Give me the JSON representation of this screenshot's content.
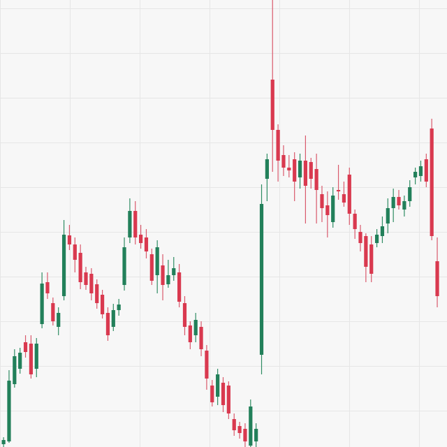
{
  "chart_data": {
    "type": "candlestick",
    "title": "",
    "xlabel": "",
    "ylabel": "",
    "axes_visible": false,
    "grid": true,
    "ylim": [
      0,
      640
    ],
    "colors": {
      "background": "#f7f7f7",
      "grid": "#e6e6e6",
      "up": "#22805a",
      "down": "#d9394f",
      "wick_up": "#2f8c63",
      "wick_down": "#d9596c"
    },
    "candles": [
      {
        "i": 1,
        "open": 4,
        "close": 10,
        "high": 14,
        "low": 0
      },
      {
        "i": 2,
        "open": 8,
        "close": 95,
        "high": 110,
        "low": 6
      },
      {
        "i": 3,
        "open": 90,
        "close": 130,
        "high": 140,
        "low": 85
      },
      {
        "i": 4,
        "open": 112,
        "close": 135,
        "high": 142,
        "low": 105
      },
      {
        "i": 5,
        "open": 150,
        "close": 136,
        "high": 160,
        "low": 128
      },
      {
        "i": 6,
        "open": 148,
        "close": 104,
        "high": 160,
        "low": 98
      },
      {
        "i": 7,
        "open": 112,
        "close": 148,
        "high": 156,
        "low": 100
      },
      {
        "i": 8,
        "open": 176,
        "close": 234,
        "high": 250,
        "low": 170
      },
      {
        "i": 9,
        "open": 236,
        "close": 220,
        "high": 250,
        "low": 212
      },
      {
        "i": 10,
        "open": 206,
        "close": 180,
        "high": 214,
        "low": 174
      },
      {
        "i": 11,
        "open": 172,
        "close": 192,
        "high": 200,
        "low": 160
      },
      {
        "i": 12,
        "open": 216,
        "close": 304,
        "high": 325,
        "low": 210
      },
      {
        "i": 13,
        "open": 303,
        "close": 290,
        "high": 318,
        "low": 282
      },
      {
        "i": 14,
        "open": 290,
        "close": 268,
        "high": 300,
        "low": 250
      },
      {
        "i": 15,
        "open": 278,
        "close": 236,
        "high": 290,
        "low": 226
      },
      {
        "i": 16,
        "open": 250,
        "close": 232,
        "high": 258,
        "low": 225
      },
      {
        "i": 17,
        "open": 248,
        "close": 220,
        "high": 256,
        "low": 210
      },
      {
        "i": 18,
        "open": 233,
        "close": 206,
        "high": 240,
        "low": 198
      },
      {
        "i": 19,
        "open": 218,
        "close": 190,
        "high": 225,
        "low": 184
      },
      {
        "i": 20,
        "open": 192,
        "close": 160,
        "high": 200,
        "low": 152
      },
      {
        "i": 21,
        "open": 172,
        "close": 196,
        "high": 205,
        "low": 166
      },
      {
        "i": 22,
        "open": 196,
        "close": 204,
        "high": 212,
        "low": 188
      },
      {
        "i": 23,
        "open": 232,
        "close": 286,
        "high": 300,
        "low": 224
      },
      {
        "i": 24,
        "open": 300,
        "close": 338,
        "high": 356,
        "low": 292
      },
      {
        "i": 25,
        "open": 338,
        "close": 300,
        "high": 352,
        "low": 290
      },
      {
        "i": 26,
        "open": 304,
        "close": 292,
        "high": 318,
        "low": 284
      },
      {
        "i": 27,
        "open": 300,
        "close": 280,
        "high": 312,
        "low": 270
      },
      {
        "i": 28,
        "open": 276,
        "close": 238,
        "high": 284,
        "low": 232
      },
      {
        "i": 29,
        "open": 246,
        "close": 286,
        "high": 296,
        "low": 220
      },
      {
        "i": 30,
        "open": 260,
        "close": 232,
        "high": 276,
        "low": 210
      },
      {
        "i": 31,
        "open": 233,
        "close": 246,
        "high": 268,
        "low": 228
      },
      {
        "i": 32,
        "open": 246,
        "close": 256,
        "high": 272,
        "low": 238
      },
      {
        "i": 33,
        "open": 250,
        "close": 208,
        "high": 262,
        "low": 200
      },
      {
        "i": 34,
        "open": 206,
        "close": 172,
        "high": 216,
        "low": 160
      },
      {
        "i": 35,
        "open": 174,
        "close": 150,
        "high": 180,
        "low": 140
      },
      {
        "i": 36,
        "open": 160,
        "close": 182,
        "high": 192,
        "low": 150
      },
      {
        "i": 37,
        "open": 172,
        "close": 140,
        "high": 180,
        "low": 130
      },
      {
        "i": 38,
        "open": 138,
        "close": 98,
        "high": 146,
        "low": 82
      },
      {
        "i": 39,
        "open": 88,
        "close": 64,
        "high": 96,
        "low": 58
      },
      {
        "i": 40,
        "open": 72,
        "close": 104,
        "high": 112,
        "low": 60
      },
      {
        "i": 41,
        "open": 92,
        "close": 60,
        "high": 100,
        "low": 50
      },
      {
        "i": 42,
        "open": 88,
        "close": 48,
        "high": 94,
        "low": 40
      },
      {
        "i": 43,
        "open": 40,
        "close": 24,
        "high": 48,
        "low": 16
      },
      {
        "i": 44,
        "open": 30,
        "close": 20,
        "high": 36,
        "low": 12
      },
      {
        "i": 45,
        "open": 26,
        "close": 8,
        "high": 34,
        "low": 0
      },
      {
        "i": 46,
        "open": 2,
        "close": 58,
        "high": 68,
        "low": 0
      },
      {
        "i": 47,
        "open": 8,
        "close": 26,
        "high": 34,
        "low": 0
      },
      {
        "i": 48,
        "open": 132,
        "close": 348,
        "high": 376,
        "low": 104
      },
      {
        "i": 49,
        "open": 384,
        "close": 412,
        "high": 420,
        "low": 352
      },
      {
        "i": 50,
        "open": 526,
        "close": 454,
        "high": 640,
        "low": 394
      },
      {
        "i": 51,
        "open": 454,
        "close": 410,
        "high": 462,
        "low": 380
      },
      {
        "i": 52,
        "open": 418,
        "close": 400,
        "high": 432,
        "low": 388
      },
      {
        "i": 53,
        "open": 400,
        "close": 396,
        "high": 418,
        "low": 386
      },
      {
        "i": 54,
        "open": 412,
        "close": 380,
        "high": 422,
        "low": 352
      },
      {
        "i": 55,
        "open": 386,
        "close": 410,
        "high": 420,
        "low": 370
      },
      {
        "i": 56,
        "open": 410,
        "close": 374,
        "high": 446,
        "low": 320
      },
      {
        "i": 57,
        "open": 408,
        "close": 384,
        "high": 414,
        "low": 370
      },
      {
        "i": 58,
        "open": 398,
        "close": 368,
        "high": 420,
        "low": 320
      },
      {
        "i": 59,
        "open": 362,
        "close": 342,
        "high": 374,
        "low": 322
      },
      {
        "i": 60,
        "open": 346,
        "close": 332,
        "high": 366,
        "low": 300
      },
      {
        "i": 61,
        "open": 322,
        "close": 360,
        "high": 372,
        "low": 314
      },
      {
        "i": 62,
        "open": 368,
        "close": 366,
        "high": 404,
        "low": 354
      },
      {
        "i": 63,
        "open": 362,
        "close": 350,
        "high": 380,
        "low": 344
      },
      {
        "i": 64,
        "open": 390,
        "close": 334,
        "high": 400,
        "low": 318
      },
      {
        "i": 65,
        "open": 334,
        "close": 312,
        "high": 340,
        "low": 298
      },
      {
        "i": 66,
        "open": 308,
        "close": 292,
        "high": 318,
        "low": 280
      },
      {
        "i": 67,
        "open": 302,
        "close": 258,
        "high": 306,
        "low": 236
      },
      {
        "i": 68,
        "open": 290,
        "close": 248,
        "high": 302,
        "low": 236
      },
      {
        "i": 69,
        "open": 292,
        "close": 304,
        "high": 312,
        "low": 286
      },
      {
        "i": 70,
        "open": 302,
        "close": 316,
        "high": 330,
        "low": 292
      },
      {
        "i": 71,
        "open": 320,
        "close": 342,
        "high": 356,
        "low": 306
      },
      {
        "i": 72,
        "open": 342,
        "close": 358,
        "high": 370,
        "low": 322
      },
      {
        "i": 73,
        "open": 358,
        "close": 346,
        "high": 368,
        "low": 340
      },
      {
        "i": 74,
        "open": 340,
        "close": 352,
        "high": 360,
        "low": 330
      },
      {
        "i": 75,
        "open": 352,
        "close": 372,
        "high": 382,
        "low": 344
      },
      {
        "i": 76,
        "open": 386,
        "close": 394,
        "high": 400,
        "low": 376
      },
      {
        "i": 77,
        "open": 388,
        "close": 402,
        "high": 410,
        "low": 380
      },
      {
        "i": 78,
        "open": 412,
        "close": 380,
        "high": 420,
        "low": 372
      },
      {
        "i": 79,
        "open": 456,
        "close": 302,
        "high": 470,
        "low": 296
      },
      {
        "i": 80,
        "open": 266,
        "close": 216,
        "high": 300,
        "low": 200
      }
    ]
  }
}
